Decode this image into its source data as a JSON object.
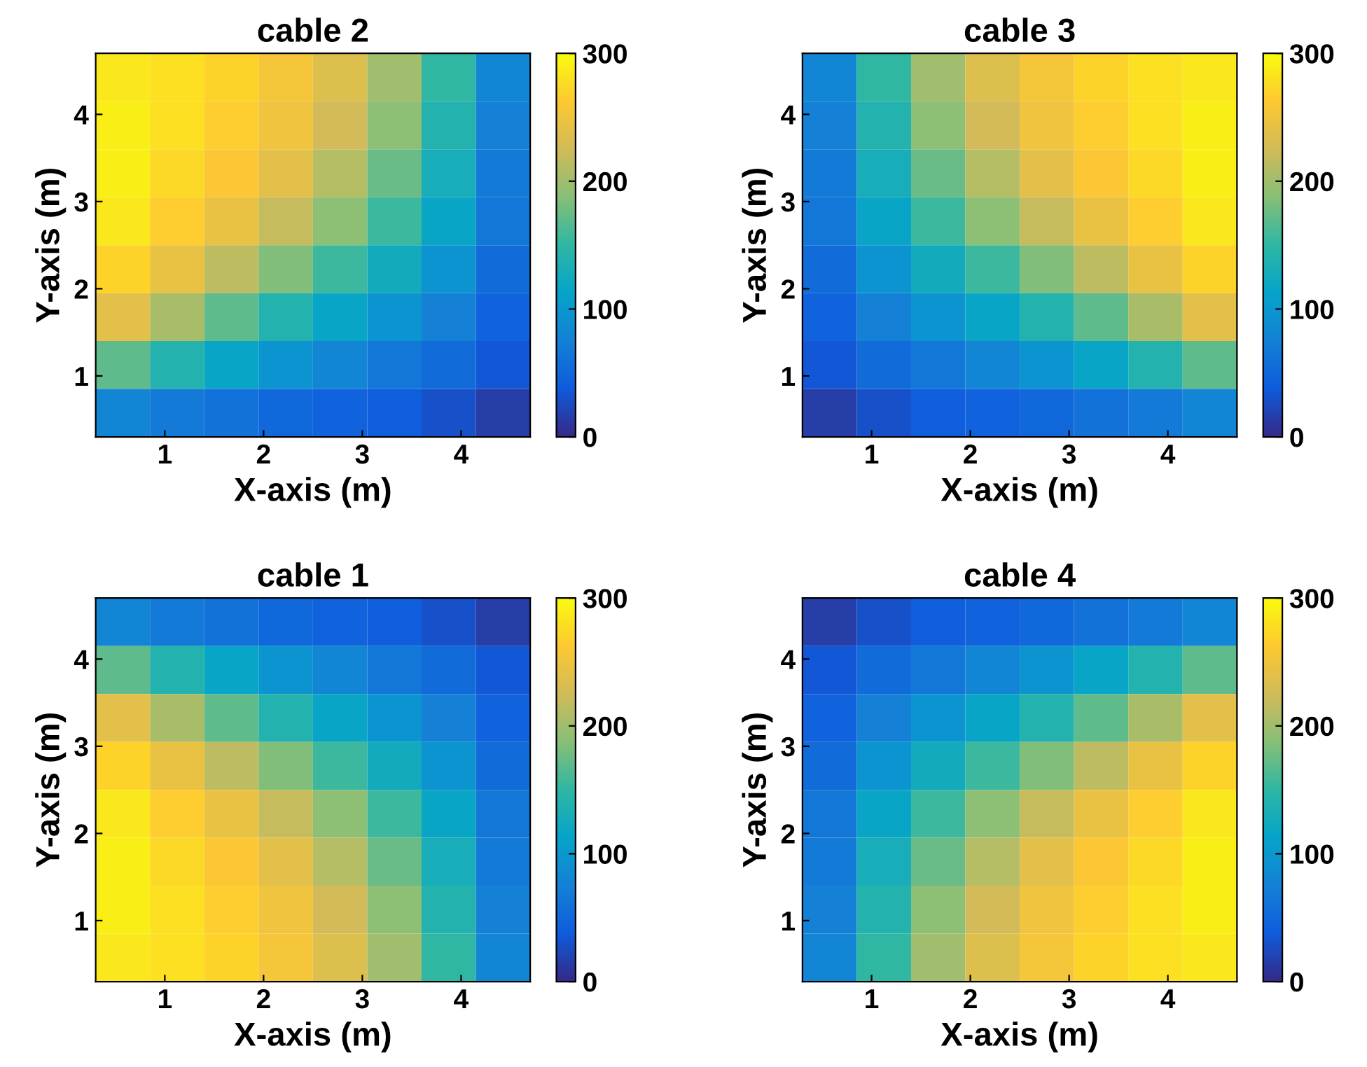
{
  "chart_data": [
    {
      "type": "heatmap",
      "title": "cable 2",
      "xlabel": "X-axis (m)",
      "ylabel": "Y-axis (m)",
      "xlim": [
        0.3,
        4.7
      ],
      "ylim": [
        0.3,
        4.7
      ],
      "xticks": [
        1,
        2,
        3,
        4
      ],
      "yticks": [
        1,
        2,
        3,
        4
      ],
      "clim": [
        0,
        300
      ],
      "cticks": [
        0,
        100,
        200,
        300
      ],
      "cells": [
        [
          285,
          280,
          270,
          255,
          235,
          200,
          150,
          80
        ],
        [
          290,
          280,
          265,
          250,
          225,
          190,
          140,
          75
        ],
        [
          290,
          275,
          260,
          240,
          210,
          175,
          130,
          70
        ],
        [
          285,
          265,
          245,
          220,
          190,
          155,
          115,
          65
        ],
        [
          270,
          245,
          215,
          185,
          155,
          125,
          95,
          55
        ],
        [
          240,
          205,
          170,
          140,
          115,
          95,
          75,
          45
        ],
        [
          170,
          140,
          115,
          95,
          80,
          65,
          55,
          35
        ],
        [
          80,
          70,
          60,
          50,
          45,
          40,
          30,
          15
        ]
      ]
    },
    {
      "type": "heatmap",
      "title": "cable 3",
      "xlabel": "X-axis (m)",
      "ylabel": "Y-axis (m)",
      "xlim": [
        0.3,
        4.7
      ],
      "ylim": [
        0.3,
        4.7
      ],
      "xticks": [
        1,
        2,
        3,
        4
      ],
      "yticks": [
        1,
        2,
        3,
        4
      ],
      "clim": [
        0,
        300
      ],
      "cticks": [
        0,
        100,
        200,
        300
      ],
      "cells": [
        [
          80,
          150,
          200,
          235,
          255,
          270,
          280,
          285
        ],
        [
          75,
          140,
          190,
          225,
          250,
          265,
          280,
          290
        ],
        [
          70,
          130,
          175,
          210,
          240,
          260,
          275,
          290
        ],
        [
          65,
          115,
          155,
          190,
          220,
          245,
          265,
          285
        ],
        [
          55,
          95,
          125,
          155,
          185,
          215,
          245,
          270
        ],
        [
          45,
          75,
          95,
          115,
          140,
          170,
          205,
          240
        ],
        [
          35,
          55,
          65,
          80,
          95,
          115,
          140,
          170
        ],
        [
          15,
          30,
          40,
          45,
          50,
          60,
          70,
          80
        ]
      ]
    },
    {
      "type": "heatmap",
      "title": "cable 1",
      "xlabel": "X-axis (m)",
      "ylabel": "Y-axis (m)",
      "xlim": [
        0.3,
        4.7
      ],
      "ylim": [
        0.3,
        4.7
      ],
      "xticks": [
        1,
        2,
        3,
        4
      ],
      "yticks": [
        1,
        2,
        3,
        4
      ],
      "clim": [
        0,
        300
      ],
      "cticks": [
        0,
        100,
        200,
        300
      ],
      "cells": [
        [
          80,
          70,
          60,
          50,
          45,
          40,
          30,
          15
        ],
        [
          170,
          140,
          115,
          95,
          80,
          65,
          55,
          35
        ],
        [
          240,
          205,
          170,
          140,
          115,
          95,
          75,
          45
        ],
        [
          270,
          245,
          215,
          185,
          155,
          125,
          95,
          55
        ],
        [
          285,
          265,
          245,
          220,
          190,
          155,
          115,
          65
        ],
        [
          290,
          275,
          260,
          240,
          210,
          175,
          130,
          70
        ],
        [
          290,
          280,
          265,
          250,
          225,
          190,
          140,
          75
        ],
        [
          285,
          280,
          270,
          255,
          235,
          200,
          150,
          80
        ]
      ]
    },
    {
      "type": "heatmap",
      "title": "cable 4",
      "xlabel": "X-axis (m)",
      "ylabel": "Y-axis (m)",
      "xlim": [
        0.3,
        4.7
      ],
      "ylim": [
        0.3,
        4.7
      ],
      "xticks": [
        1,
        2,
        3,
        4
      ],
      "yticks": [
        1,
        2,
        3,
        4
      ],
      "clim": [
        0,
        300
      ],
      "cticks": [
        0,
        100,
        200,
        300
      ],
      "cells": [
        [
          15,
          30,
          40,
          45,
          50,
          60,
          70,
          80
        ],
        [
          35,
          55,
          65,
          80,
          95,
          115,
          140,
          170
        ],
        [
          45,
          75,
          95,
          115,
          140,
          170,
          205,
          240
        ],
        [
          55,
          95,
          125,
          155,
          185,
          215,
          245,
          270
        ],
        [
          65,
          115,
          155,
          190,
          220,
          245,
          265,
          285
        ],
        [
          70,
          130,
          175,
          210,
          240,
          260,
          275,
          290
        ],
        [
          75,
          140,
          190,
          225,
          250,
          265,
          280,
          290
        ],
        [
          80,
          150,
          200,
          235,
          255,
          270,
          280,
          285
        ]
      ]
    }
  ]
}
